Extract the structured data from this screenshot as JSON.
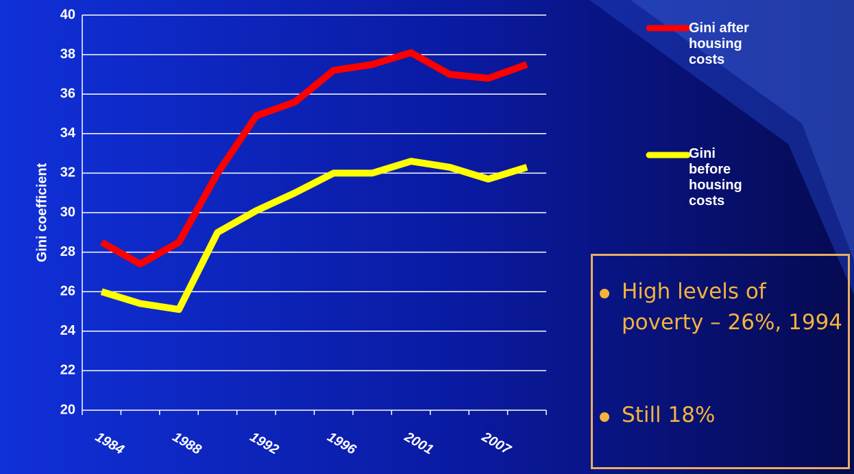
{
  "chart_data": {
    "type": "line",
    "y_label": "Gini coefficient",
    "categories": [
      "1984",
      null,
      "1988",
      null,
      "1992",
      null,
      "1996",
      null,
      "2001",
      null,
      "2007",
      null
    ],
    "series": [
      {
        "name": "Gini after housing costs",
        "color": "#ff0000",
        "values": [
          28.5,
          27.4,
          28.5,
          32.0,
          34.9,
          35.6,
          37.2,
          37.5,
          38.1,
          37.0,
          36.8,
          37.5
        ]
      },
      {
        "name": "Gini before housing costs",
        "color": "#ffff00",
        "values": [
          26.0,
          25.4,
          25.1,
          29.0,
          30.1,
          31.0,
          32.0,
          32.0,
          32.6,
          32.3,
          31.7,
          32.3
        ]
      }
    ],
    "ylim": [
      20,
      40
    ],
    "yticks": [
      20,
      22,
      24,
      26,
      28,
      30,
      32,
      34,
      36,
      38,
      40
    ],
    "grid": true,
    "annotations": [
      "High levels of poverty – 26%, 1994",
      "Still 18%"
    ]
  }
}
